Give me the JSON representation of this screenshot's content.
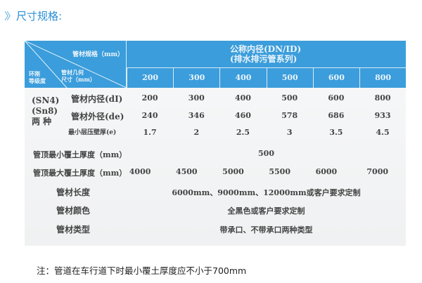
{
  "title": "尺寸规格:",
  "header": {
    "corner_top": "管材规格（mm）",
    "corner_mid": "管材几何\n尺寸（mm）",
    "corner_left": "环刚\n等级度",
    "group": "公称内径(DN/ID)\n(排水排污管系列)",
    "sizes": [
      "200",
      "300",
      "400",
      "500",
      "600",
      "800"
    ]
  },
  "grade_label": "(SN4)\n(Sn8)\n两 种",
  "rows": [
    {
      "label": "管材内径(dI)",
      "values": [
        "200",
        "300",
        "400",
        "500",
        "600",
        "800"
      ]
    },
    {
      "label": "管材外径(de)",
      "values": [
        "240",
        "346",
        "460",
        "578",
        "686",
        "933"
      ]
    },
    {
      "label": "最小层压壁厚(e)",
      "values": [
        "1.7",
        "2",
        "2.5",
        "3",
        "3.5",
        "4.5"
      ]
    }
  ],
  "min_cover": {
    "label": "管顶最小覆土厚度（mm）",
    "value": "500"
  },
  "max_cover": {
    "label": "管顶最大覆土厚度（mm）",
    "values": [
      "4000",
      "4500",
      "5000",
      "5500",
      "6000",
      "7000"
    ]
  },
  "length": {
    "label": "管材长度",
    "value": "6000mm、9000mm、12000mm或客户要求定制"
  },
  "color": {
    "label": "管材颜色",
    "value": "全黑色或客户要求定制"
  },
  "type": {
    "label": "管材类型",
    "value": "带承口、不带承口两种类型"
  },
  "note": "注：管道在车行道下时最小覆土厚度应不小于700mm",
  "colors": {
    "header": "#3b9ddb",
    "title": "#2a8fd6"
  }
}
